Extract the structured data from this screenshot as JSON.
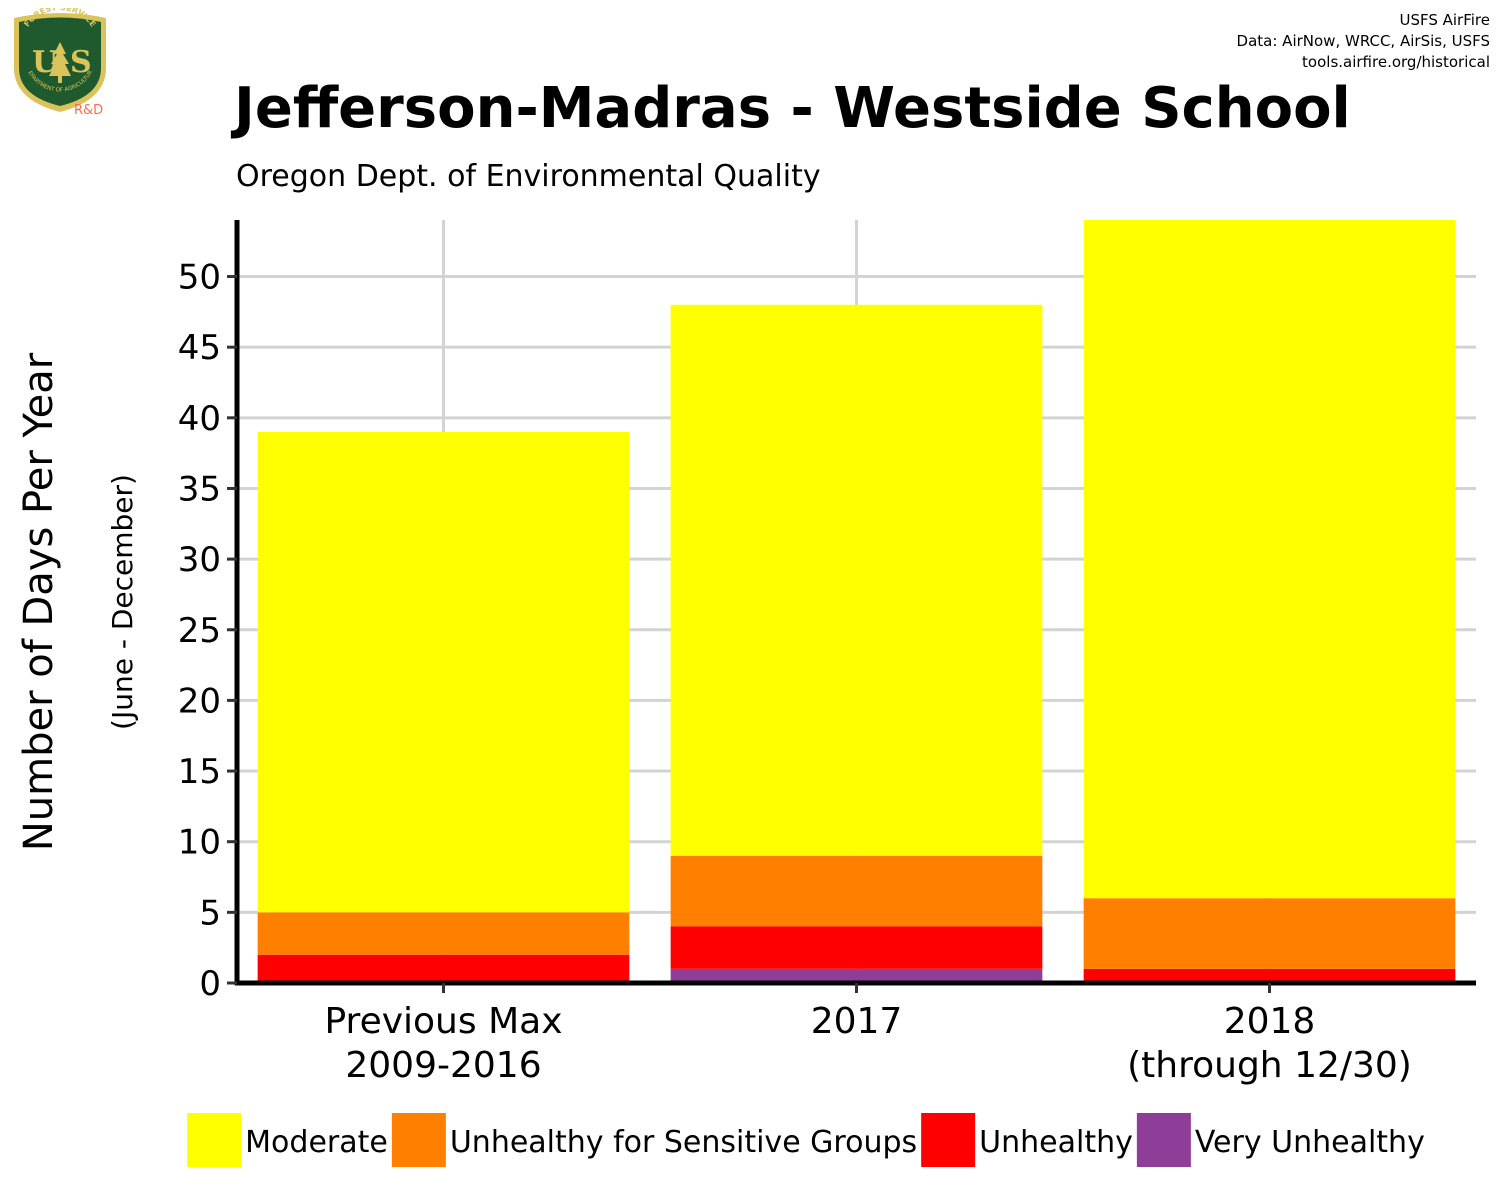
{
  "credits": [
    "USFS AirFire",
    "Data: AirNow, WRCC, AirSis, USFS",
    "tools.airfire.org/historical"
  ],
  "logo": {
    "text_top": "FOREST SERVICE",
    "text_bottom": "DEPARTMENT OF AGRICULTURE",
    "letters": "US",
    "rd_label": "R&D",
    "colors": {
      "shield": "#1f5a2e",
      "gold": "#d9c35a",
      "rd": "#ff6a4d"
    }
  },
  "chart_data": {
    "type": "bar",
    "stacked": true,
    "title": "Jefferson-Madras - Westside School",
    "subtitle": "Oregon Dept. of Environmental Quality",
    "ylabel": "Number of Days Per Year",
    "ylabel_sub": "(June - December)",
    "xlabel": "",
    "categories": [
      [
        "Previous Max",
        "2009-2016"
      ],
      [
        "2017"
      ],
      [
        "2018",
        "(through 12/30)"
      ]
    ],
    "ylim": [
      0,
      54
    ],
    "yticks": [
      0,
      5,
      10,
      15,
      20,
      25,
      30,
      35,
      40,
      45,
      50
    ],
    "grid": true,
    "legend_position": "bottom",
    "series": [
      {
        "name": "Very Unhealthy",
        "color": "#8e3d98",
        "values": [
          0,
          1,
          0
        ]
      },
      {
        "name": "Unhealthy",
        "color": "#ff0000",
        "values": [
          2,
          3,
          1
        ]
      },
      {
        "name": "Unhealthy for Sensitive Groups",
        "color": "#ff7f00",
        "values": [
          3,
          5,
          5
        ]
      },
      {
        "name": "Moderate",
        "color": "#ffff00",
        "values": [
          34,
          39,
          48
        ]
      }
    ],
    "legend_order": [
      "Moderate",
      "Unhealthy for Sensitive Groups",
      "Unhealthy",
      "Very Unhealthy"
    ]
  }
}
